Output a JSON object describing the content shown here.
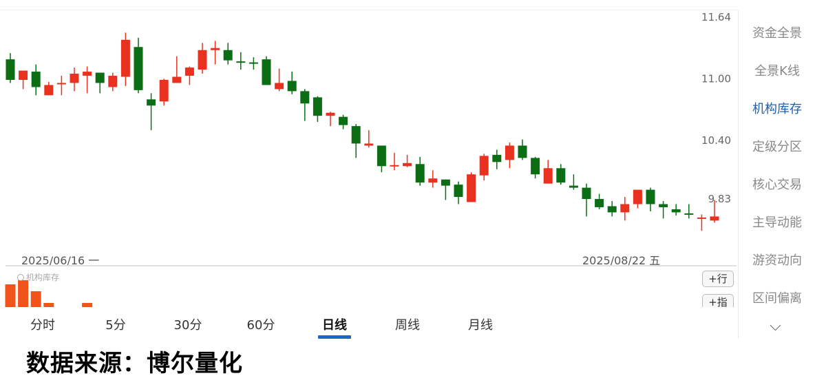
{
  "colors": {
    "up": "#e8321f",
    "down": "#0b6e14",
    "indicator": "#f0541a",
    "accent": "#1f5fae"
  },
  "chart_data": {
    "type": "candlestick",
    "y_ticks": [
      11.64,
      11.0,
      10.4,
      9.83
    ],
    "y_tick_labels": [
      "11.64",
      "11.00",
      "10.40",
      "9.83"
    ],
    "ylim": [
      9.39,
      11.64
    ],
    "x_start_label": "2025/06/16 一",
    "x_end_label": "2025/08/22 五",
    "grid": false,
    "ohlc": [
      [
        11.23,
        11.29,
        11.0,
        11.03
      ],
      [
        11.03,
        11.12,
        10.94,
        11.12
      ],
      [
        11.11,
        11.18,
        10.88,
        10.96
      ],
      [
        10.88,
        11.01,
        10.88,
        10.98
      ],
      [
        10.99,
        11.07,
        10.88,
        11.0
      ],
      [
        11.0,
        11.15,
        10.92,
        11.09
      ],
      [
        11.07,
        11.16,
        10.9,
        11.11
      ],
      [
        11.1,
        11.1,
        10.9,
        11.0
      ],
      [
        10.96,
        11.1,
        10.92,
        11.07
      ],
      [
        11.06,
        11.49,
        10.97,
        11.42
      ],
      [
        11.35,
        11.44,
        10.9,
        10.93
      ],
      [
        10.84,
        10.9,
        10.54,
        10.78
      ],
      [
        10.82,
        11.04,
        10.78,
        11.03
      ],
      [
        11.0,
        11.26,
        11.0,
        11.06
      ],
      [
        11.07,
        11.16,
        10.98,
        11.15
      ],
      [
        11.13,
        11.39,
        11.09,
        11.32
      ],
      [
        11.32,
        11.41,
        11.18,
        11.34
      ],
      [
        11.32,
        11.39,
        11.18,
        11.22
      ],
      [
        11.21,
        11.3,
        11.13,
        11.2
      ],
      [
        11.2,
        11.25,
        11.13,
        11.19
      ],
      [
        11.23,
        11.26,
        10.98,
        10.98
      ],
      [
        10.94,
        11.14,
        10.92,
        11.0
      ],
      [
        11.02,
        11.11,
        10.89,
        10.92
      ],
      [
        10.92,
        10.94,
        10.63,
        10.8
      ],
      [
        10.86,
        10.87,
        10.62,
        10.68
      ],
      [
        10.68,
        10.72,
        10.58,
        10.71
      ],
      [
        10.67,
        10.69,
        10.55,
        10.59
      ],
      [
        10.58,
        10.6,
        10.27,
        10.41
      ],
      [
        10.39,
        10.54,
        10.37,
        10.41
      ],
      [
        10.39,
        10.39,
        10.13,
        10.19
      ],
      [
        10.19,
        10.32,
        10.15,
        10.2
      ],
      [
        10.19,
        10.3,
        10.18,
        10.22
      ],
      [
        10.21,
        10.28,
        10.0,
        10.03
      ],
      [
        10.03,
        10.15,
        9.98,
        10.07
      ],
      [
        10.06,
        10.06,
        9.86,
        10.0
      ],
      [
        10.01,
        10.04,
        9.82,
        9.89
      ],
      [
        9.84,
        10.13,
        9.84,
        10.11
      ],
      [
        10.1,
        10.31,
        10.05,
        10.29
      ],
      [
        10.3,
        10.35,
        10.16,
        10.23
      ],
      [
        10.25,
        10.42,
        10.17,
        10.39
      ],
      [
        10.39,
        10.45,
        10.25,
        10.27
      ],
      [
        10.27,
        10.28,
        10.07,
        10.11
      ],
      [
        10.02,
        10.25,
        10.02,
        10.17
      ],
      [
        10.17,
        10.21,
        10.01,
        10.03
      ],
      [
        10.0,
        10.11,
        9.96,
        9.98
      ],
      [
        9.98,
        10.02,
        9.7,
        9.87
      ],
      [
        9.87,
        9.92,
        9.77,
        9.79
      ],
      [
        9.8,
        9.85,
        9.7,
        9.74
      ],
      [
        9.74,
        9.89,
        9.66,
        9.82
      ],
      [
        9.82,
        9.96,
        9.78,
        9.96
      ],
      [
        9.96,
        9.98,
        9.75,
        9.82
      ],
      [
        9.82,
        9.85,
        9.68,
        9.79
      ],
      [
        9.77,
        9.82,
        9.71,
        9.74
      ],
      [
        9.73,
        9.82,
        9.68,
        9.72
      ],
      [
        9.68,
        9.72,
        9.56,
        9.69
      ],
      [
        9.66,
        9.86,
        9.64,
        9.7
      ]
    ],
    "indicator": {
      "name": "机构库存",
      "values": [
        33,
        39,
        23,
        6,
        null,
        null,
        6
      ]
    }
  },
  "sidebar": {
    "items": [
      {
        "label": "资金全景",
        "active": false
      },
      {
        "label": "全景K线",
        "active": false
      },
      {
        "label": "机构库存",
        "active": true
      },
      {
        "label": "定级分区",
        "active": false
      },
      {
        "label": "核心交易",
        "active": false
      },
      {
        "label": "主导动能",
        "active": false
      },
      {
        "label": "游资动向",
        "active": false
      },
      {
        "label": "区间偏离",
        "active": false
      }
    ],
    "more_icon": "chevron-down-icon"
  },
  "tabs": [
    {
      "label": "分时",
      "active": false
    },
    {
      "label": "5分",
      "active": false
    },
    {
      "label": "30分",
      "active": false
    },
    {
      "label": "60分",
      "active": false
    },
    {
      "label": "日线",
      "active": true
    },
    {
      "label": "周线",
      "active": false
    },
    {
      "label": "月线",
      "active": false
    }
  ],
  "buttons": {
    "add_row": "+行",
    "add_indicator": "+指"
  },
  "footer": "数据来源：博尔量化"
}
